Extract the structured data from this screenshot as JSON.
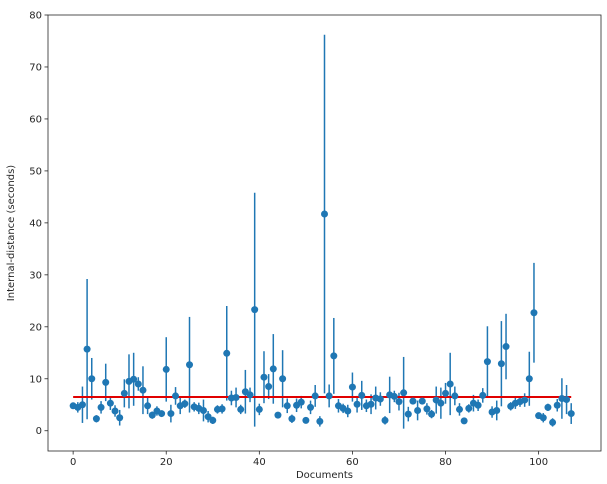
{
  "chart_data": {
    "type": "scatter",
    "title": "",
    "xlabel": "Documents",
    "ylabel": "Internal-distance (seconds)",
    "xlim": [
      -5.4,
      113.4
    ],
    "ylim": [
      -3.9,
      80
    ],
    "xticks": [
      0,
      20,
      40,
      60,
      80,
      100
    ],
    "yticks": [
      0,
      10,
      20,
      30,
      40,
      50,
      60,
      70,
      80
    ],
    "grid": false,
    "colors": {
      "points": "#1f77b4",
      "mean_line": "#e00000",
      "axes": "#262626"
    },
    "series": [
      {
        "marker": "o",
        "x": [
          0,
          1,
          2,
          3,
          4,
          5,
          6,
          7,
          8,
          9,
          10,
          11,
          12,
          13,
          14,
          15,
          16,
          17,
          18,
          19,
          20,
          21,
          22,
          23,
          24,
          25,
          26,
          27,
          28,
          29,
          30,
          31,
          32,
          33,
          34,
          35,
          36,
          37,
          38,
          39,
          40,
          41,
          42,
          43,
          44,
          45,
          46,
          47,
          48,
          49,
          50,
          51,
          52,
          53,
          54,
          55,
          56,
          57,
          58,
          59,
          60,
          61,
          62,
          63,
          64,
          65,
          66,
          67,
          68,
          69,
          70,
          71,
          72,
          73,
          74,
          75,
          76,
          77,
          78,
          79,
          80,
          81,
          82,
          83,
          84,
          85,
          86,
          87,
          88,
          89,
          90,
          91,
          92,
          93,
          94,
          95,
          96,
          97,
          98,
          99,
          100,
          101,
          102,
          103,
          104,
          105,
          106,
          107
        ],
        "y": [
          4.8,
          4.5,
          5.0,
          15.7,
          10.0,
          2.3,
          4.5,
          9.3,
          5.3,
          3.8,
          2.5,
          7.2,
          9.5,
          9.9,
          9.0,
          7.8,
          4.8,
          3.0,
          3.8,
          3.3,
          11.8,
          3.3,
          6.7,
          4.8,
          5.2,
          12.7,
          4.6,
          4.3,
          3.9,
          2.7,
          2.0,
          4.1,
          4.2,
          14.9,
          6.3,
          6.4,
          4.1,
          7.5,
          6.9,
          23.3,
          4.1,
          10.3,
          8.5,
          11.9,
          3.0,
          10.0,
          4.8,
          2.3,
          4.9,
          5.5,
          2.0,
          4.5,
          6.7,
          1.8,
          41.7,
          6.7,
          14.4,
          4.8,
          4.3,
          3.8,
          8.4,
          5.1,
          6.8,
          4.8,
          5.1,
          6.3,
          6.1,
          2.0,
          6.9,
          6.6,
          5.6,
          7.3,
          3.2,
          5.7,
          3.9,
          5.7,
          4.2,
          3.2,
          5.9,
          5.3,
          7.2,
          9.0,
          6.7,
          4.1,
          1.9,
          4.3,
          5.3,
          4.9,
          6.8,
          13.3,
          3.6,
          3.9,
          12.9,
          16.2,
          4.7,
          5.3,
          5.6,
          5.9,
          10.0,
          22.7,
          2.9,
          2.5,
          4.5,
          1.6,
          4.9,
          6.2,
          6.0,
          3.3
        ],
        "err": [
          0.6,
          1.0,
          3.5,
          13.5,
          4.0,
          0.7,
          1.2,
          3.6,
          1.3,
          1.1,
          1.5,
          2.7,
          5.2,
          5.1,
          1.3,
          4.6,
          1.6,
          0.7,
          0.9,
          0.6,
          6.2,
          1.7,
          1.7,
          1.6,
          0.8,
          9.2,
          0.9,
          1.1,
          2.1,
          1.1,
          0.7,
          0.8,
          0.9,
          9.1,
          1.4,
          1.9,
          0.9,
          4.2,
          1.4,
          22.5,
          1.1,
          5.0,
          2.4,
          6.7,
          0.6,
          5.5,
          1.4,
          0.8,
          1.3,
          1.2,
          0.6,
          1.3,
          2.1,
          1.0,
          34.5,
          2.2,
          7.3,
          1.3,
          0.9,
          1.2,
          2.8,
          1.6,
          2.8,
          1.2,
          1.9,
          2.2,
          1.3,
          0.8,
          3.5,
          1.1,
          1.7,
          6.9,
          1.4,
          0.6,
          1.9,
          0.6,
          1.1,
          0.8,
          2.6,
          3.0,
          2.0,
          6.0,
          1.8,
          1.2,
          0.5,
          0.8,
          1.6,
          1.1,
          1.4,
          6.8,
          1.1,
          1.9,
          8.2,
          6.3,
          0.8,
          1.1,
          1.0,
          1.3,
          5.2,
          9.6,
          0.6,
          0.9,
          0.7,
          0.8,
          1.2,
          3.9,
          2.8,
          2.0
        ]
      }
    ],
    "reference_line": {
      "orientation": "horizontal",
      "y": 6.5,
      "x_range": [
        0,
        107
      ]
    }
  }
}
